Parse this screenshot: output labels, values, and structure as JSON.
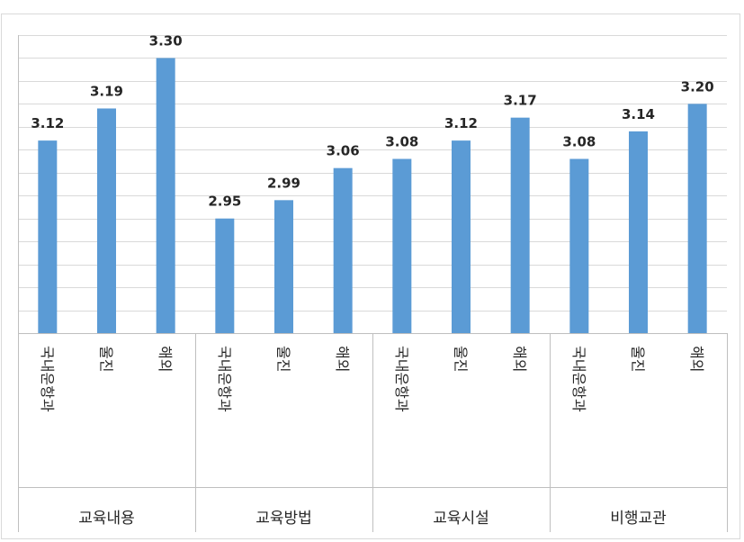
{
  "chart_data": {
    "type": "bar",
    "title": "",
    "xlabel": "",
    "ylabel": "",
    "ylim": [
      2.7,
      3.35
    ],
    "ytick_step": 0.05,
    "show_y_tick_labels": false,
    "grid": true,
    "legend": "none",
    "color": "#5b9bd5",
    "groups": [
      {
        "name": "교육내용",
        "categories": [
          "국내운항과",
          "울진",
          "해외"
        ],
        "values": [
          3.12,
          3.19,
          3.3
        ],
        "labels": [
          "3.12",
          "3.19",
          "3.30"
        ]
      },
      {
        "name": "교육방법",
        "categories": [
          "국내운항과",
          "울진",
          "해외"
        ],
        "values": [
          2.95,
          2.99,
          3.06
        ],
        "labels": [
          "2.95",
          "2.99",
          "3.06"
        ]
      },
      {
        "name": "교육시설",
        "categories": [
          "국내운항과",
          "울진",
          "해외"
        ],
        "values": [
          3.08,
          3.12,
          3.17
        ],
        "labels": [
          "3.08",
          "3.12",
          "3.17"
        ]
      },
      {
        "name": "비행교관",
        "categories": [
          "국내운항과",
          "울진",
          "해외"
        ],
        "values": [
          3.08,
          3.14,
          3.2
        ],
        "labels": [
          "3.08",
          "3.14",
          "3.20"
        ]
      }
    ]
  }
}
